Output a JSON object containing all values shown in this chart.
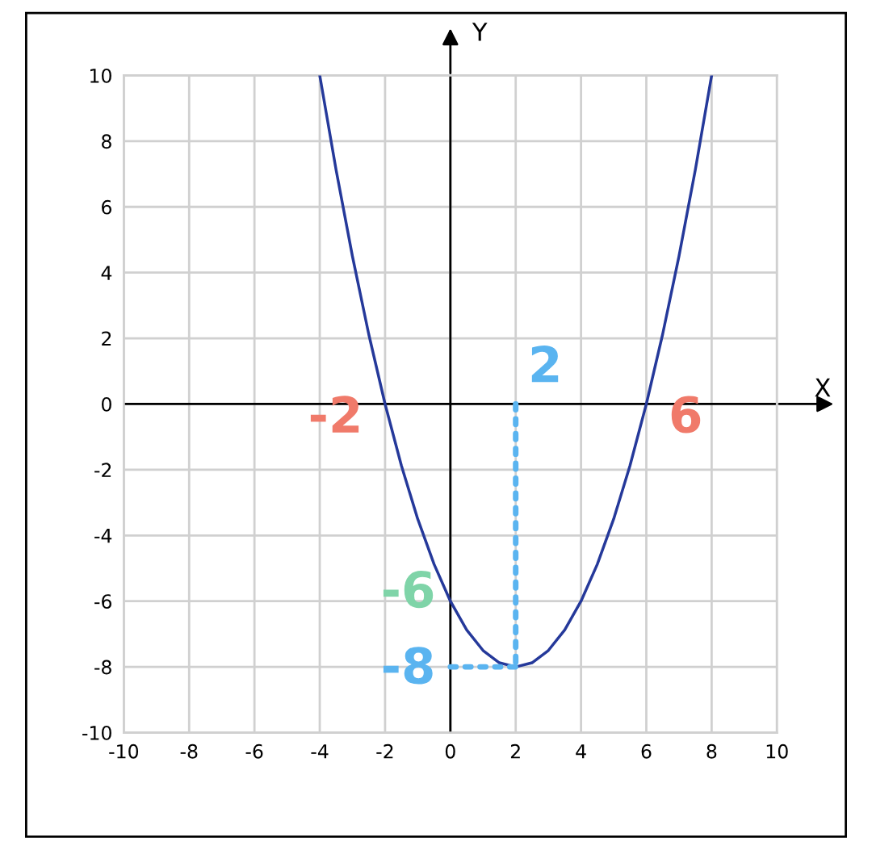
{
  "chart_data": {
    "type": "line",
    "xlabel": "X",
    "ylabel": "Y",
    "xlim": [
      -10,
      10
    ],
    "ylim": [
      -10,
      10
    ],
    "xticks": [
      -10,
      -8,
      -6,
      -4,
      -2,
      0,
      2,
      4,
      6,
      8,
      10
    ],
    "yticks": [
      -10,
      -8,
      -6,
      -4,
      -2,
      0,
      2,
      4,
      6,
      8,
      10
    ],
    "grid": true,
    "marker": "none",
    "series": [
      {
        "color": "#25399a",
        "line_style": "solid",
        "x": [
          -4,
          -3.5,
          -3,
          -2.5,
          -2,
          -1.5,
          -1,
          -0.5,
          0,
          0.5,
          1,
          1.5,
          2,
          2.5,
          3,
          3.5,
          4,
          4.5,
          5,
          5.5,
          6,
          6.5,
          7,
          7.5,
          8
        ],
        "values": [
          10,
          7.125,
          4.5,
          2.125,
          0,
          -1.875,
          -3.5,
          -4.875,
          -6,
          -6.875,
          -7.5,
          -7.875,
          -8,
          -7.875,
          -7.5,
          -6.875,
          -6,
          -4.875,
          -3.5,
          -1.875,
          0,
          2.125,
          4.5,
          7.125,
          10
        ]
      },
      {
        "color": "#5ab4f0",
        "line_style": "dotted",
        "x": [
          2,
          2
        ],
        "values": [
          0,
          -8
        ]
      },
      {
        "color": "#5ab4f0",
        "line_style": "dotted",
        "x": [
          0,
          2
        ],
        "values": [
          -8,
          -8
        ]
      }
    ],
    "annotations": [
      {
        "text": "-2",
        "x": -2,
        "y": 0
      },
      {
        "text": "6",
        "x": 6,
        "y": 0
      },
      {
        "text": "-6",
        "x": 0,
        "y": -6
      },
      {
        "text": "2",
        "x": 2,
        "y": 0
      },
      {
        "text": "-8",
        "x": 0,
        "y": -8
      }
    ]
  }
}
